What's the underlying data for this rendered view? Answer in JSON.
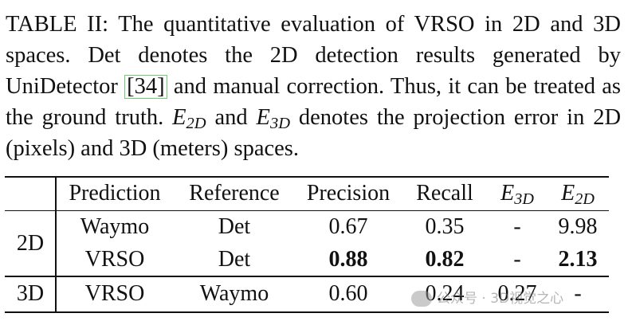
{
  "caption": {
    "label": "TABLE II:",
    "text_a": "The quantitative evaluation of VRSO in 2D and 3D spaces. Det denotes the 2D detection results generated by UniDetector",
    "cite": "[34]",
    "text_b": "and manual correction. Thus, it can be treated as the ground truth.",
    "e2d_base": "E",
    "e2d_sub": "2D",
    "text_c": "and",
    "e3d_base": "E",
    "e3d_sub": "3D",
    "text_d": "denotes the projection error in 2D (pixels) and 3D (meters) spaces."
  },
  "table": {
    "headers": {
      "prediction": "Prediction",
      "reference": "Reference",
      "precision": "Precision",
      "recall": "Recall",
      "e3d_base": "E",
      "e3d_sub": "3D",
      "e2d_base": "E",
      "e2d_sub": "2D"
    },
    "group_2d": "2D",
    "group_3d": "3D",
    "rows": [
      {
        "prediction": "Waymo",
        "reference": "Det",
        "precision": "0.67",
        "recall": "0.35",
        "e3d": "-",
        "e2d": "9.98"
      },
      {
        "prediction": "VRSO",
        "reference": "Det",
        "precision": "0.88",
        "recall": "0.82",
        "e3d": "-",
        "e2d": "2.13"
      },
      {
        "prediction": "VRSO",
        "reference": "Waymo",
        "precision": "0.60",
        "recall": "0.24",
        "e3d": "0.27",
        "e2d": "-"
      }
    ]
  },
  "watermark": "公众号 · 3D视觉之心"
}
